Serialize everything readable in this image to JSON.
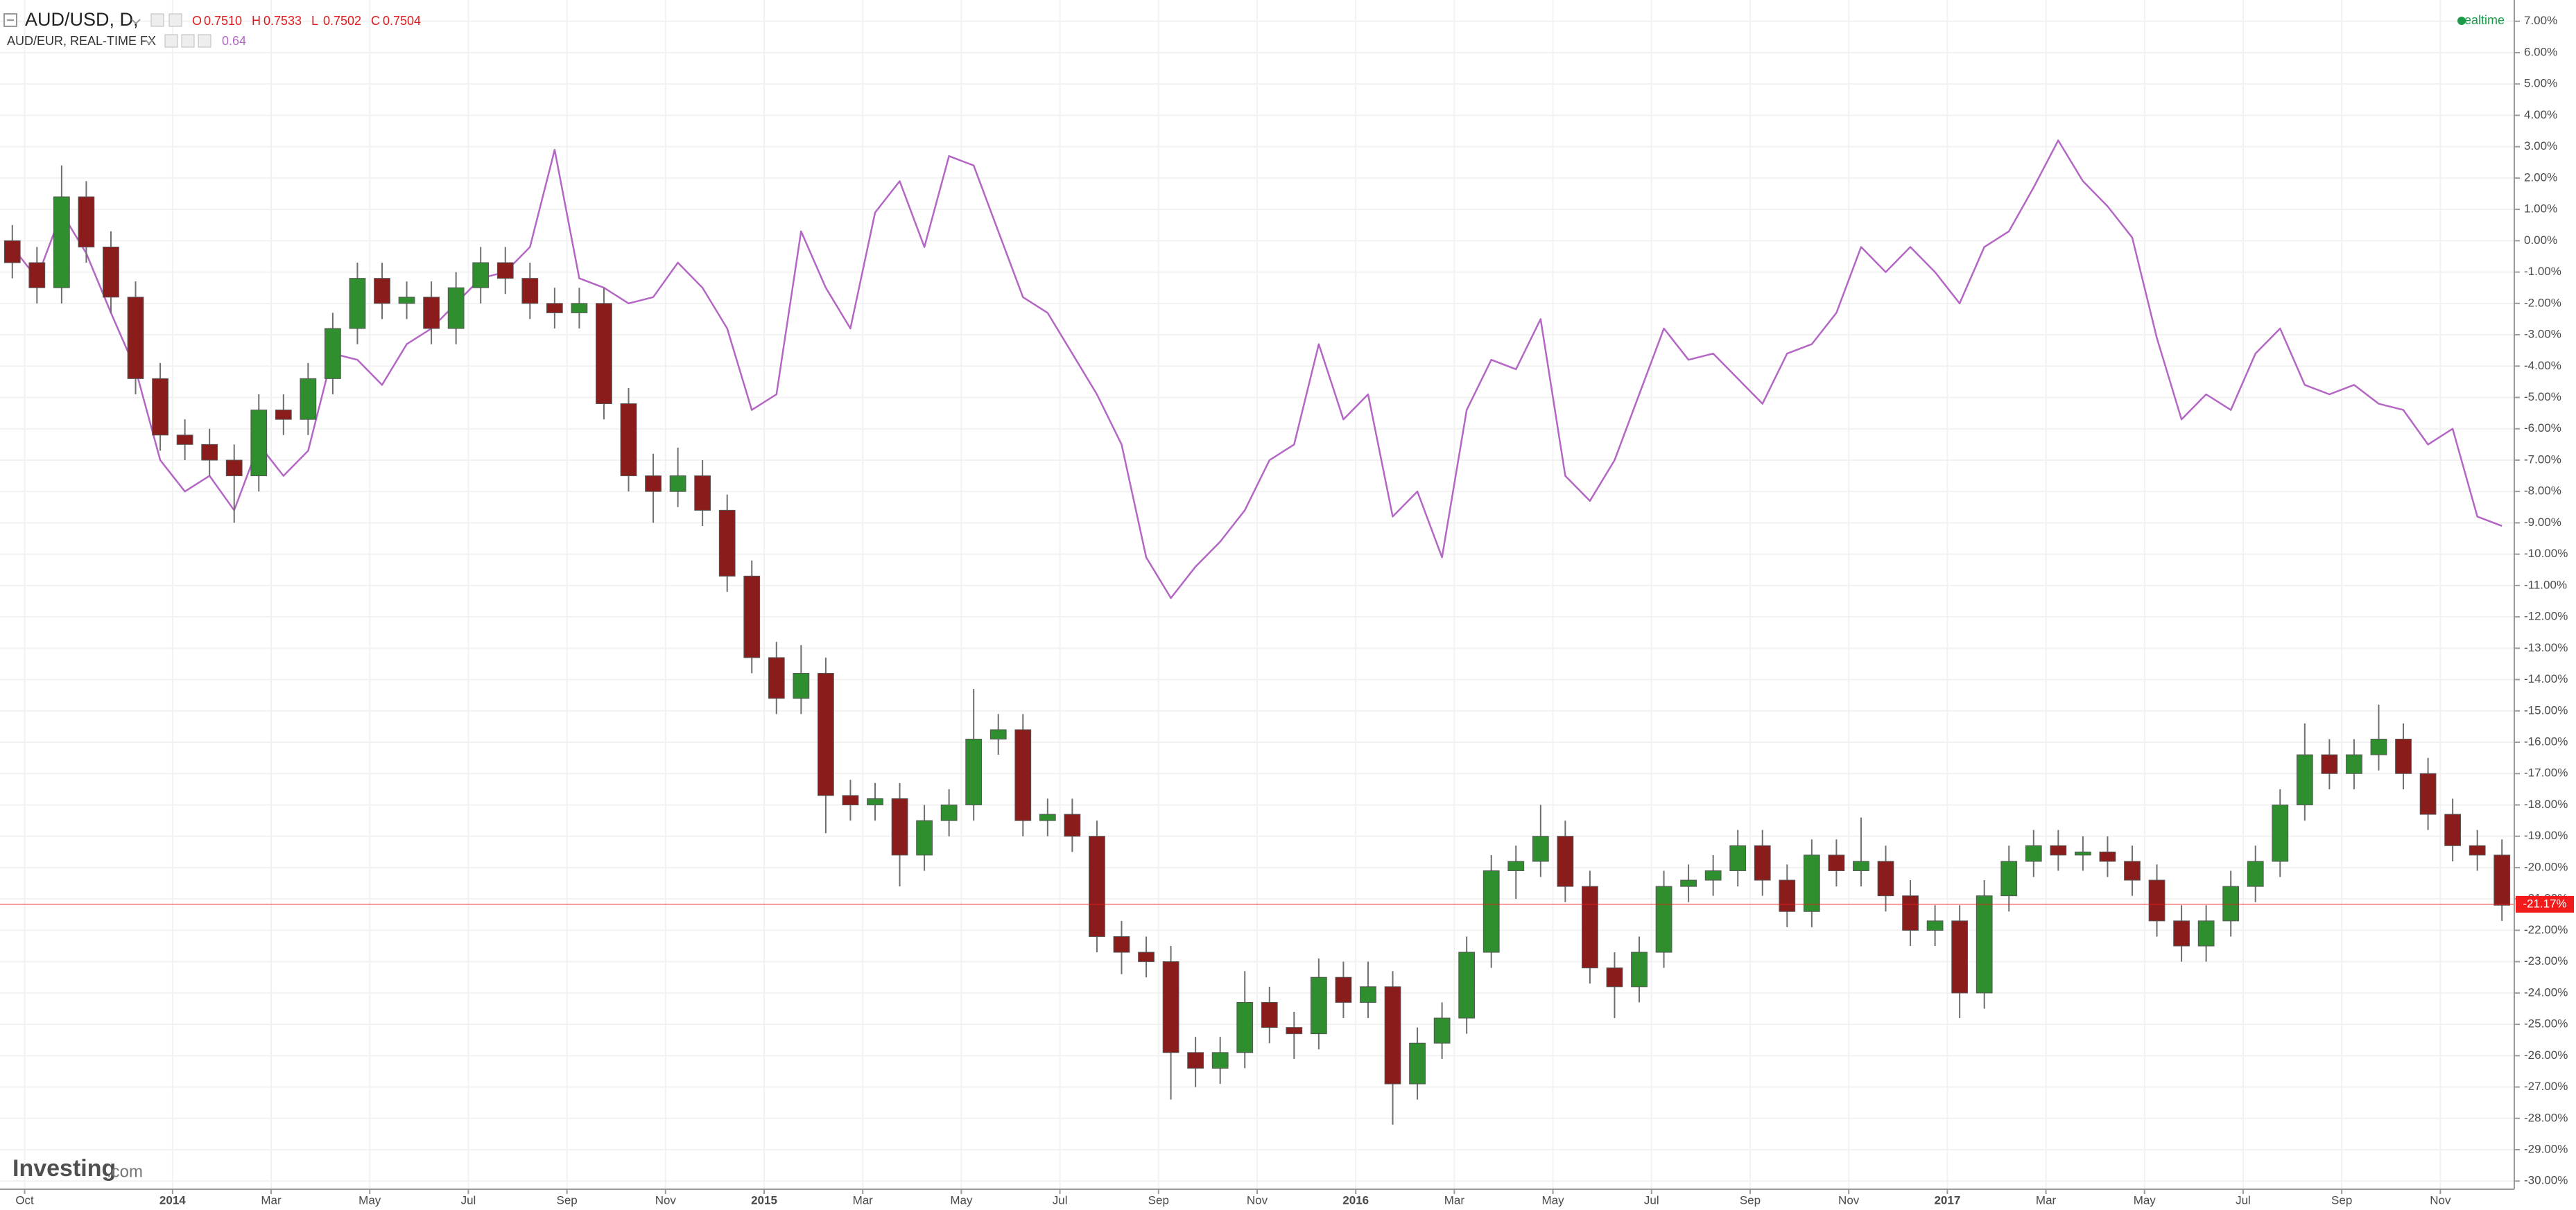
{
  "chart_data": {
    "type": "candlestick",
    "title": "AUD/USD, D,",
    "ohlc_legend": [
      {
        "key": "O",
        "text": "0.7510"
      },
      {
        "key": "H",
        "text": "0.7533"
      },
      {
        "key": "L",
        "text": "0.7502"
      },
      {
        "key": "C",
        "text": "0.7504"
      }
    ],
    "legend_color": "#e01b1b",
    "status": "realtime",
    "status_color": "#1d9a4a",
    "watermark": [
      "Investing",
      ".com"
    ],
    "up_color": "#2f8f2f",
    "down_color": "#8b1c1c",
    "wick_color": "#6e6e6e",
    "open": [
      0,
      -0.7,
      -1.5,
      1.4,
      -0.2,
      -1.8,
      -4.4,
      -6.2,
      -6.5,
      -7.0,
      -7.5,
      -5.4,
      -5.7,
      -4.4,
      -2.8,
      -1.2,
      -2.0,
      -1.8,
      -2.8,
      -1.5,
      -0.7,
      -1.2,
      -2.0,
      -2.3,
      -2.0,
      -5.2,
      -7.5,
      -8.0,
      -7.5,
      -8.6,
      -10.7,
      -13.3,
      -14.6,
      -13.8,
      -17.7,
      -18.0,
      -17.8,
      -19.6,
      -18.5,
      -18.0,
      -15.9,
      -15.6,
      -18.5,
      -18.3,
      -19.0,
      -22.2,
      -22.7,
      -23.0,
      -25.9,
      -26.4,
      -25.9,
      -24.3,
      -25.1,
      -25.3,
      -23.5,
      -24.3,
      -23.8,
      -26.9,
      -25.6,
      -24.8,
      -22.7,
      -20.1,
      -19.8,
      -19.0,
      -20.6,
      -23.2,
      -23.8,
      -22.7,
      -20.6,
      -20.4,
      -20.1,
      -19.3,
      -20.4,
      -21.4,
      -19.6,
      -20.1,
      -19.8,
      -20.9,
      -22.0,
      -21.7,
      -24.0,
      -20.9,
      -19.8,
      -19.3,
      -19.6,
      -19.5,
      -19.8,
      -20.4,
      -21.7,
      -22.5,
      -21.7,
      -20.6,
      -19.8,
      -18.0,
      -16.4,
      -17.0,
      -16.4,
      -15.9,
      -17.0,
      -18.3,
      -19.3,
      -19.6
    ],
    "high": [
      0.5,
      -0.2,
      2.4,
      1.9,
      0.3,
      -1.3,
      -3.9,
      -5.7,
      -6.0,
      -6.5,
      -4.9,
      -4.9,
      -3.9,
      -2.3,
      -0.7,
      -0.7,
      -1.3,
      -1.3,
      -1.0,
      -0.2,
      -0.2,
      -0.7,
      -1.5,
      -1.5,
      -1.5,
      -4.7,
      -6.8,
      -6.6,
      -7.0,
      -8.1,
      -10.2,
      -12.8,
      -12.9,
      -13.3,
      -17.2,
      -17.3,
      -17.3,
      -18.0,
      -17.5,
      -14.3,
      -15.1,
      -15.1,
      -17.8,
      -17.8,
      -18.5,
      -21.7,
      -22.2,
      -22.5,
      -25.4,
      -25.4,
      -23.3,
      -23.8,
      -24.6,
      -22.9,
      -23.0,
      -23.0,
      -23.3,
      -25.1,
      -24.3,
      -22.2,
      -19.6,
      -19.3,
      -18.0,
      -18.5,
      -20.1,
      -22.7,
      -22.2,
      -20.1,
      -19.9,
      -19.6,
      -18.8,
      -18.8,
      -19.9,
      -19.1,
      -19.1,
      -18.4,
      -19.3,
      -20.4,
      -21.2,
      -21.2,
      -20.4,
      -19.3,
      -18.8,
      -18.8,
      -19.0,
      -19.0,
      -19.3,
      -19.9,
      -21.2,
      -21.2,
      -20.1,
      -19.3,
      -17.5,
      -15.4,
      -15.9,
      -15.9,
      -14.8,
      -15.4,
      -16.5,
      -17.8,
      -18.8,
      -19.1
    ],
    "low": [
      -1.2,
      -2.0,
      -2.0,
      -0.7,
      -2.3,
      -4.9,
      -6.7,
      -7.0,
      -7.5,
      -9.0,
      -8.0,
      -6.2,
      -6.2,
      -4.9,
      -3.3,
      -2.5,
      -2.5,
      -3.3,
      -3.3,
      -2.0,
      -1.7,
      -2.5,
      -2.8,
      -2.8,
      -5.7,
      -8.0,
      -9.0,
      -8.5,
      -9.1,
      -11.2,
      -13.8,
      -15.1,
      -15.1,
      -18.9,
      -18.5,
      -18.5,
      -20.6,
      -20.1,
      -19.0,
      -18.5,
      -16.4,
      -19.0,
      -19.0,
      -19.5,
      -22.7,
      -23.4,
      -23.5,
      -27.4,
      -27.0,
      -26.9,
      -26.4,
      -25.6,
      -26.1,
      -25.8,
      -24.8,
      -24.8,
      -28.2,
      -27.4,
      -26.1,
      -25.3,
      -23.2,
      -21.0,
      -20.3,
      -21.1,
      -23.7,
      -24.8,
      -24.3,
      -23.2,
      -21.1,
      -20.9,
      -20.6,
      -20.9,
      -21.9,
      -21.9,
      -20.6,
      -20.6,
      -21.4,
      -22.5,
      -22.5,
      -24.8,
      -24.5,
      -21.4,
      -20.3,
      -20.1,
      -20.1,
      -20.3,
      -20.9,
      -22.2,
      -23.0,
      -23.0,
      -22.2,
      -21.1,
      -20.3,
      -18.5,
      -17.5,
      -17.5,
      -16.9,
      -17.5,
      -18.8,
      -19.8,
      -20.1,
      -21.7
    ],
    "close": [
      -0.7,
      -1.5,
      1.4,
      -0.2,
      -1.8,
      -4.4,
      -6.2,
      -6.5,
      -7.0,
      -7.5,
      -5.4,
      -5.7,
      -4.4,
      -2.8,
      -1.2,
      -2.0,
      -1.8,
      -2.8,
      -1.5,
      -0.7,
      -1.2,
      -2.0,
      -2.3,
      -2.0,
      -5.2,
      -7.5,
      -8.0,
      -7.5,
      -8.6,
      -10.7,
      -13.3,
      -14.6,
      -13.8,
      -17.7,
      -18.0,
      -17.8,
      -19.6,
      -18.5,
      -18.0,
      -15.9,
      -15.6,
      -18.5,
      -18.3,
      -19.0,
      -22.2,
      -22.7,
      -23.0,
      -25.9,
      -26.4,
      -25.9,
      -24.3,
      -25.1,
      -25.3,
      -23.5,
      -24.3,
      -23.8,
      -26.9,
      -25.6,
      -24.8,
      -22.7,
      -20.1,
      -19.8,
      -19.0,
      -20.6,
      -23.2,
      -23.8,
      -22.7,
      -20.6,
      -20.4,
      -20.1,
      -19.3,
      -20.4,
      -21.4,
      -19.6,
      -20.1,
      -19.8,
      -20.9,
      -22.0,
      -21.7,
      -24.0,
      -20.9,
      -19.8,
      -19.3,
      -19.6,
      -19.5,
      -19.8,
      -20.4,
      -21.7,
      -22.5,
      -21.7,
      -20.6,
      -19.8,
      -18.0,
      -16.4,
      -17.0,
      -16.4,
      -15.9,
      -17.0,
      -18.3,
      -19.3,
      -19.6,
      -21.2
    ],
    "last_value": {
      "value": -21.17,
      "label": "-21.17%"
    },
    "last_color": "#f21b1b",
    "overlay": {
      "type": "line",
      "name": "AUD/EUR, REAL-TIME FX",
      "text": "0.64",
      "color": "#b466c4",
      "values": [
        -0.2,
        -1.2,
        0.9,
        -0.4,
        -2.3,
        -4.1,
        -7.0,
        -8.0,
        -7.5,
        -8.6,
        -6.5,
        -7.5,
        -6.7,
        -3.6,
        -3.8,
        -4.6,
        -3.3,
        -2.8,
        -2.0,
        -1.2,
        -1.0,
        -0.2,
        2.9,
        -1.2,
        -1.5,
        -2.0,
        -1.8,
        -0.7,
        -1.5,
        -2.8,
        -5.4,
        -4.9,
        0.3,
        -1.5,
        -2.8,
        0.9,
        1.9,
        -0.2,
        2.7,
        2.4,
        0.3,
        -1.8,
        -2.3,
        -3.6,
        -4.9,
        -6.5,
        -10.1,
        -11.4,
        -10.4,
        -9.6,
        -8.6,
        -7.0,
        -6.5,
        -3.3,
        -5.7,
        -4.9,
        -8.8,
        -8.0,
        -10.1,
        -5.4,
        -3.8,
        -4.1,
        -2.5,
        -7.5,
        -8.3,
        -7.0,
        -4.9,
        -2.8,
        -3.8,
        -3.6,
        -4.4,
        -5.2,
        -3.6,
        -3.3,
        -2.3,
        -0.2,
        -1.0,
        -0.2,
        -1.0,
        -2.0,
        -0.2,
        0.3,
        1.7,
        3.2,
        1.9,
        1.1,
        0.1,
        -3.1,
        -5.7,
        -4.9,
        -5.4,
        -3.6,
        -2.8,
        -4.6,
        -4.9,
        -4.6,
        -5.2,
        -5.4,
        -6.5,
        -6.0,
        -8.8,
        -9.1
      ]
    },
    "xlim": [
      0,
      102
    ],
    "xticks": [
      {
        "value": 1,
        "label": "Oct"
      },
      {
        "value": 7,
        "label": "2014"
      },
      {
        "value": 11,
        "label": "Mar"
      },
      {
        "value": 15,
        "label": "May"
      },
      {
        "value": 19,
        "label": "Jul"
      },
      {
        "value": 23,
        "label": "Sep"
      },
      {
        "value": 27,
        "label": "Nov"
      },
      {
        "value": 31,
        "label": "2015"
      },
      {
        "value": 35,
        "label": "Mar"
      },
      {
        "value": 39,
        "label": "May"
      },
      {
        "value": 43,
        "label": "Jul"
      },
      {
        "value": 47,
        "label": "Sep"
      },
      {
        "value": 51,
        "label": "Nov"
      },
      {
        "value": 55,
        "label": "2016"
      },
      {
        "value": 59,
        "label": "Mar"
      },
      {
        "value": 63,
        "label": "May"
      },
      {
        "value": 67,
        "label": "Jul"
      },
      {
        "value": 71,
        "label": "Sep"
      },
      {
        "value": 75,
        "label": "Nov"
      },
      {
        "value": 79,
        "label": "2017"
      },
      {
        "value": 83,
        "label": "Mar"
      },
      {
        "value": 87,
        "label": "May"
      },
      {
        "value": 91,
        "label": "Jul"
      },
      {
        "value": 95,
        "label": "Sep"
      },
      {
        "value": 99,
        "label": "Nov"
      }
    ],
    "ylim": [
      -30.26,
      7.68
    ],
    "yticks": [
      {
        "value": 7,
        "label": "7.00%"
      },
      {
        "value": 6,
        "label": "6.00%"
      },
      {
        "value": 5,
        "label": "5.00%"
      },
      {
        "value": 4,
        "label": "4.00%"
      },
      {
        "value": 3,
        "label": "3.00%"
      },
      {
        "value": 2,
        "label": "2.00%"
      },
      {
        "value": 1,
        "label": "1.00%"
      },
      {
        "value": 0,
        "label": "0.00%"
      },
      {
        "value": -1,
        "label": "-1.00%"
      },
      {
        "value": -2,
        "label": "-2.00%"
      },
      {
        "value": -3,
        "label": "-3.00%"
      },
      {
        "value": -4,
        "label": "-4.00%"
      },
      {
        "value": -5,
        "label": "-5.00%"
      },
      {
        "value": -6,
        "label": "-6.00%"
      },
      {
        "value": -7,
        "label": "-7.00%"
      },
      {
        "value": -8,
        "label": "-8.00%"
      },
      {
        "value": -9,
        "label": "-9.00%"
      },
      {
        "value": -10,
        "label": "-10.00%"
      },
      {
        "value": -11,
        "label": "-11.00%"
      },
      {
        "value": -12,
        "label": "-12.00%"
      },
      {
        "value": -13,
        "label": "-13.00%"
      },
      {
        "value": -14,
        "label": "-14.00%"
      },
      {
        "value": -15,
        "label": "-15.00%"
      },
      {
        "value": -16,
        "label": "-16.00%"
      },
      {
        "value": -17,
        "label": "-17.00%"
      },
      {
        "value": -18,
        "label": "-18.00%"
      },
      {
        "value": -19,
        "label": "-19.00%"
      },
      {
        "value": -20,
        "label": "-20.00%"
      },
      {
        "value": -21,
        "label": "-21.00%"
      },
      {
        "value": -22,
        "label": "-22.00%"
      },
      {
        "value": -23,
        "label": "-23.00%"
      },
      {
        "value": -24,
        "label": "-24.00%"
      },
      {
        "value": -25,
        "label": "-25.00%"
      },
      {
        "value": -26,
        "label": "-26.00%"
      },
      {
        "value": -27,
        "label": "-27.00%"
      },
      {
        "value": -28,
        "label": "-28.00%"
      },
      {
        "value": -29,
        "label": "-29.00%"
      },
      {
        "value": -30,
        "label": "-30.00%"
      }
    ],
    "grid": true
  }
}
